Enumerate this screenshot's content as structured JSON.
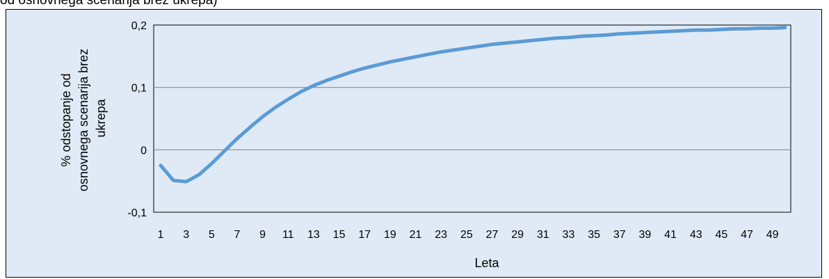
{
  "header": {
    "caption_fragment": "od osnovnega scenarija brez ukrepa)"
  },
  "chart_data": {
    "type": "line",
    "title": "",
    "xlabel": "Leta",
    "ylabel_lines": [
      "% odstopanje od",
      "osnovnega scenarija brez",
      "ukrepa"
    ],
    "ylim": [
      -0.1,
      0.2
    ],
    "yticks": [
      -0.1,
      0,
      0.1,
      0.2
    ],
    "ytick_labels": [
      "-0,1",
      "0",
      "0,1",
      "0,2"
    ],
    "xlim": [
      1,
      50
    ],
    "xticks": [
      1,
      3,
      5,
      7,
      9,
      11,
      13,
      15,
      17,
      19,
      21,
      23,
      25,
      27,
      29,
      31,
      33,
      35,
      37,
      39,
      41,
      43,
      45,
      47,
      49
    ],
    "xtick_labels": [
      "1",
      "3",
      "5",
      "7",
      "9",
      "11",
      "13",
      "15",
      "17",
      "19",
      "21",
      "23",
      "25",
      "27",
      "29",
      "31",
      "33",
      "35",
      "37",
      "39",
      "41",
      "43",
      "45",
      "47",
      "49"
    ],
    "grid": true,
    "legend": "none",
    "line_color": "#5b9bd5",
    "series": [
      {
        "x": [
          1,
          2,
          3,
          4,
          5,
          6,
          7,
          8,
          9,
          10,
          11,
          12,
          13,
          14,
          15,
          16,
          17,
          18,
          19,
          20,
          21,
          22,
          23,
          24,
          25,
          26,
          27,
          28,
          29,
          30,
          31,
          32,
          33,
          34,
          35,
          36,
          37,
          38,
          39,
          40,
          41,
          42,
          43,
          44,
          45,
          46,
          47,
          48,
          49,
          50
        ],
        "values": [
          -0.025,
          -0.049,
          -0.051,
          -0.04,
          -0.022,
          -0.002,
          0.018,
          0.036,
          0.053,
          0.068,
          0.081,
          0.093,
          0.103,
          0.111,
          0.118,
          0.125,
          0.131,
          0.136,
          0.141,
          0.145,
          0.149,
          0.153,
          0.157,
          0.16,
          0.163,
          0.166,
          0.169,
          0.171,
          0.173,
          0.175,
          0.177,
          0.179,
          0.18,
          0.182,
          0.183,
          0.184,
          0.186,
          0.187,
          0.188,
          0.189,
          0.19,
          0.191,
          0.192,
          0.192,
          0.193,
          0.194,
          0.194,
          0.195,
          0.195,
          0.196
        ]
      }
    ]
  }
}
